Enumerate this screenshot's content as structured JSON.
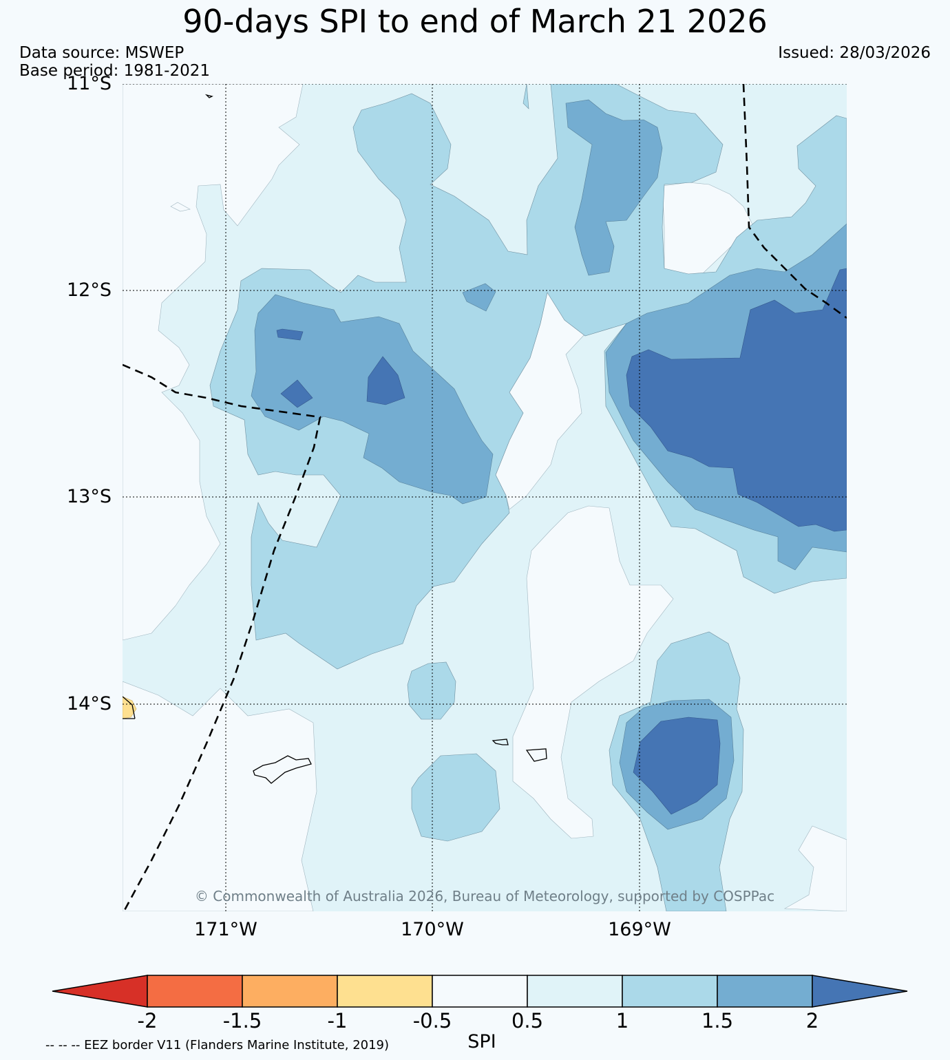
{
  "title": "90-days SPI to end of March 21 2026",
  "data_source": "Data source: MSWEP",
  "base_period": "Base period: 1981-2021",
  "issued": "Issued: 28/03/2026",
  "map": {
    "lat_labels": [
      "11°S",
      "12°S",
      "13°S",
      "14°S"
    ],
    "lon_labels": [
      "171°W",
      "170°W",
      "169°W"
    ],
    "copyright": "© Commonwealth of Australia 2026, Bureau of Meteorology, supported by COSPPac"
  },
  "colorbar": {
    "label": "SPI",
    "ticks": [
      "-2",
      "-1.5",
      "-1",
      "-0.5",
      "0.5",
      "1",
      "1.5",
      "2"
    ],
    "colors": [
      "#d73027",
      "#f46d43",
      "#fdae61",
      "#fee090",
      "#f5fafd",
      "#e0f3f8",
      "#abd9e9",
      "#74add1",
      "#4575b4"
    ]
  },
  "footer_note": "-- -- -- EEZ border V11 (Flanders Marine Institute, 2019)"
}
